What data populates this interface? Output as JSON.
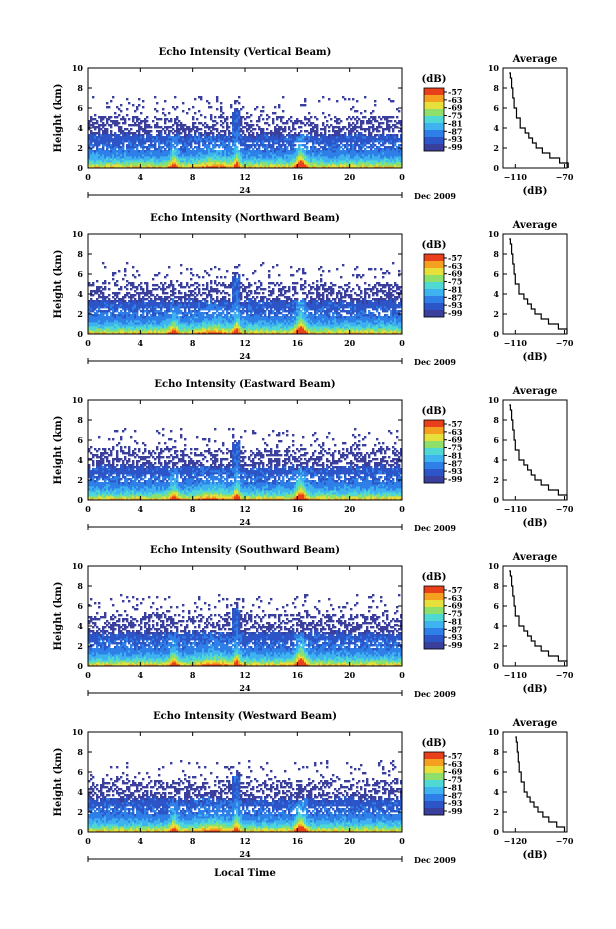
{
  "chart_data": [
    {
      "type": "heatmap",
      "title": "Echo Intensity (Vertical Beam)",
      "ylabel": "Height (km)",
      "x_ticks": [
        "0",
        "4",
        "8",
        "12",
        "16",
        "20",
        "0"
      ],
      "y_ticks": [
        "0",
        "2",
        "4",
        "6",
        "8",
        "10"
      ],
      "date_marker": "24",
      "date_label": "Dec 2009",
      "colorbar": {
        "unit": "(dB)",
        "ticks": [
          "-57",
          "-63",
          "-69",
          "-75",
          "-81",
          "-87",
          "-93",
          "-99"
        ]
      },
      "average": {
        "title": "Average",
        "xlabel": "(dB)",
        "x_ticks": [
          "-110",
          "-70"
        ],
        "y_ticks": [
          "0",
          "2",
          "4",
          "6",
          "8",
          "10"
        ],
        "profile_height_km": [
          0,
          0.5,
          1,
          1.5,
          2,
          2.5,
          3,
          3.5,
          4,
          5,
          6,
          7,
          8,
          9,
          9.5
        ],
        "profile_db": [
          -67,
          -74,
          -82,
          -88,
          -93,
          -96,
          -99,
          -102,
          -106,
          -109,
          -111,
          -112,
          -113,
          -114,
          -115
        ]
      }
    },
    {
      "type": "heatmap",
      "title": "Echo Intensity (Northward Beam)",
      "ylabel": "Height (km)",
      "x_ticks": [
        "0",
        "4",
        "8",
        "12",
        "16",
        "20",
        "0"
      ],
      "y_ticks": [
        "0",
        "2",
        "4",
        "6",
        "8",
        "10"
      ],
      "date_marker": "24",
      "date_label": "Dec 2009",
      "colorbar": {
        "unit": "(dB)",
        "ticks": [
          "-57",
          "-63",
          "-69",
          "-75",
          "-81",
          "-87",
          "-93",
          "-99"
        ]
      },
      "average": {
        "title": "Average",
        "xlabel": "(dB)",
        "x_ticks": [
          "-110",
          "-70"
        ],
        "y_ticks": [
          "0",
          "2",
          "4",
          "6",
          "8",
          "10"
        ],
        "profile_height_km": [
          0,
          0.5,
          1,
          1.5,
          2,
          2.5,
          3,
          3.5,
          4,
          5,
          6,
          7,
          8,
          9,
          9.5
        ],
        "profile_db": [
          -68,
          -75,
          -83,
          -89,
          -94,
          -97,
          -100,
          -103,
          -107,
          -110,
          -111,
          -112,
          -113,
          -114,
          -115
        ]
      }
    },
    {
      "type": "heatmap",
      "title": "Echo Intensity (Eastward Beam)",
      "ylabel": "Height (km)",
      "x_ticks": [
        "0",
        "4",
        "8",
        "12",
        "16",
        "20",
        "0"
      ],
      "y_ticks": [
        "0",
        "2",
        "4",
        "6",
        "8",
        "10"
      ],
      "date_marker": "24",
      "date_label": "Dec 2009",
      "colorbar": {
        "unit": "(dB)",
        "ticks": [
          "-57",
          "-63",
          "-69",
          "-75",
          "-81",
          "-87",
          "-93",
          "-99"
        ]
      },
      "average": {
        "title": "Average",
        "xlabel": "(dB)",
        "x_ticks": [
          "-110",
          "-70"
        ],
        "y_ticks": [
          "0",
          "2",
          "4",
          "6",
          "8",
          "10"
        ],
        "profile_height_km": [
          0,
          0.5,
          1,
          1.5,
          2,
          2.5,
          3,
          3.5,
          4,
          5,
          6,
          7,
          8,
          9,
          9.5
        ],
        "profile_db": [
          -68,
          -75,
          -83,
          -89,
          -94,
          -97,
          -100,
          -103,
          -107,
          -110,
          -111,
          -112,
          -113,
          -114,
          -115
        ]
      }
    },
    {
      "type": "heatmap",
      "title": "Echo Intensity (Southward Beam)",
      "ylabel": "Height (km)",
      "x_ticks": [
        "0",
        "4",
        "8",
        "12",
        "16",
        "20",
        "0"
      ],
      "y_ticks": [
        "0",
        "2",
        "4",
        "6",
        "8",
        "10"
      ],
      "date_marker": "24",
      "date_label": "Dec 2009",
      "colorbar": {
        "unit": "(dB)",
        "ticks": [
          "-57",
          "-63",
          "-69",
          "-75",
          "-81",
          "-87",
          "-93",
          "-99"
        ]
      },
      "average": {
        "title": "Average",
        "xlabel": "(dB)",
        "x_ticks": [
          "-110",
          "-70"
        ],
        "y_ticks": [
          "0",
          "2",
          "4",
          "6",
          "8",
          "10"
        ],
        "profile_height_km": [
          0,
          0.5,
          1,
          1.5,
          2,
          2.5,
          3,
          3.5,
          4,
          5,
          6,
          7,
          8,
          9,
          9.5
        ],
        "profile_db": [
          -68,
          -75,
          -83,
          -89,
          -94,
          -97,
          -100,
          -103,
          -107,
          -110,
          -111,
          -112,
          -113,
          -114,
          -115
        ]
      }
    },
    {
      "type": "heatmap",
      "title": "Echo Intensity (Westward Beam)",
      "ylabel": "Height (km)",
      "xlabel": "Local Time",
      "x_ticks": [
        "0",
        "4",
        "8",
        "12",
        "16",
        "20",
        "0"
      ],
      "y_ticks": [
        "0",
        "2",
        "4",
        "6",
        "8",
        "10"
      ],
      "date_marker": "24",
      "date_label": "Dec 2009",
      "colorbar": {
        "unit": "(dB)",
        "ticks": [
          "-57",
          "-63",
          "-69",
          "-75",
          "-81",
          "-87",
          "-93",
          "-99"
        ]
      },
      "average": {
        "title": "Average",
        "xlabel": "(dB)",
        "x_ticks": [
          "-120",
          "-70"
        ],
        "y_ticks": [
          "0",
          "2",
          "4",
          "6",
          "8",
          "10"
        ],
        "profile_height_km": [
          0,
          0.5,
          1,
          1.5,
          2,
          2.5,
          3,
          3.5,
          4,
          5,
          6,
          7,
          8,
          9,
          9.5
        ],
        "profile_db": [
          -70,
          -78,
          -86,
          -92,
          -97,
          -101,
          -105,
          -108,
          -111,
          -114,
          -116,
          -117,
          -118,
          -119,
          -120
        ]
      }
    }
  ],
  "colors": {
    "colormap": [
      "#3a3f9c",
      "#2c55c8",
      "#2f7fe8",
      "#3fb2f0",
      "#4fd8d4",
      "#8ee06a",
      "#e8e03a",
      "#f5a020",
      "#e8401a"
    ],
    "background": "#ffffff"
  }
}
